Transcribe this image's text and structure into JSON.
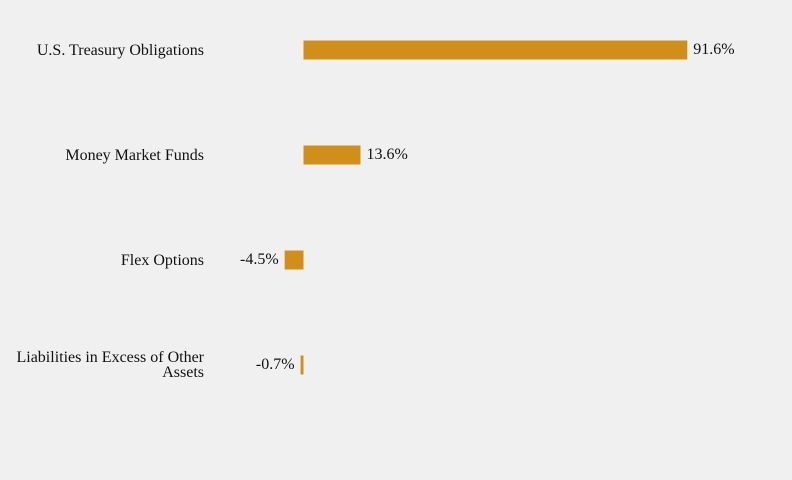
{
  "chart_data": {
    "type": "bar",
    "orientation": "horizontal",
    "categories": [
      "U.S. Treasury Obligations",
      "Money Market Funds",
      "Flex Options",
      "Liabilities in Excess of Other Assets"
    ],
    "values": [
      91.6,
      13.6,
      -4.5,
      -0.7
    ],
    "value_labels": [
      "91.6%",
      "13.6%",
      "-4.5%",
      "-0.7%"
    ],
    "unit": "%",
    "xlim": [
      -4.5,
      91.6
    ],
    "grid": false,
    "bar_color": "#cf8f1a",
    "background": "#f0f0f0"
  }
}
